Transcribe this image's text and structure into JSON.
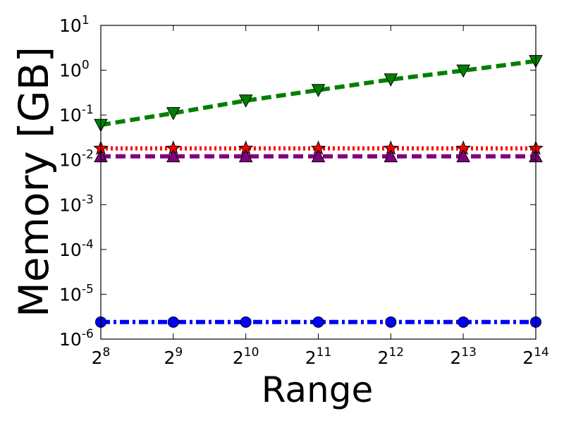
{
  "chart_data": {
    "type": "line",
    "title": "",
    "xlabel": "Range",
    "ylabel": "Memory [GB]",
    "x_scale": "log2",
    "y_scale": "log10",
    "x": [
      256,
      512,
      1024,
      2048,
      4096,
      8192,
      16384
    ],
    "xlim": [
      256,
      16384
    ],
    "ylim": [
      1e-06,
      10
    ],
    "x_ticks": [
      {
        "base": "2",
        "exp": "8"
      },
      {
        "base": "2",
        "exp": "9"
      },
      {
        "base": "2",
        "exp": "10"
      },
      {
        "base": "2",
        "exp": "11"
      },
      {
        "base": "2",
        "exp": "12"
      },
      {
        "base": "2",
        "exp": "13"
      },
      {
        "base": "2",
        "exp": "14"
      }
    ],
    "y_ticks": [
      {
        "base": "10",
        "exp": "1"
      },
      {
        "base": "10",
        "exp": "0"
      },
      {
        "base": "10",
        "exp": "-1"
      },
      {
        "base": "10",
        "exp": "-2"
      },
      {
        "base": "10",
        "exp": "-3"
      },
      {
        "base": "10",
        "exp": "-4"
      },
      {
        "base": "10",
        "exp": "-5"
      },
      {
        "base": "10",
        "exp": "-6"
      }
    ],
    "grid": false,
    "legend": "none",
    "series": [
      {
        "color": "#008000",
        "line_style": "dashed",
        "marker": "triangle-down",
        "values": [
          0.06,
          0.11,
          0.21,
          0.36,
          0.62,
          0.98,
          1.6
        ]
      },
      {
        "color": "#ff0000",
        "line_style": "dotted",
        "marker": "star",
        "values": [
          0.018,
          0.018,
          0.018,
          0.018,
          0.018,
          0.018,
          0.018
        ]
      },
      {
        "color": "#800080",
        "line_style": "dashed",
        "marker": "triangle-up",
        "values": [
          0.012,
          0.012,
          0.012,
          0.012,
          0.012,
          0.012,
          0.012
        ]
      },
      {
        "color": "#0000ff",
        "line_style": "dash-dot",
        "marker": "circle",
        "values": [
          2.4e-06,
          2.4e-06,
          2.4e-06,
          2.4e-06,
          2.4e-06,
          2.4e-06,
          2.4e-06
        ]
      }
    ]
  }
}
